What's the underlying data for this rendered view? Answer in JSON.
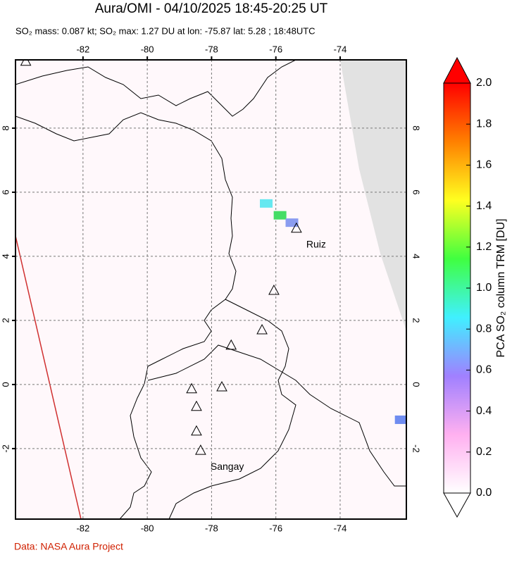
{
  "header": {
    "title": "Aura/OMI - 04/10/2025 18:45-20:25 UT",
    "subtitle": "SO₂ mass: 0.087 kt; SO₂ max: 1.27 DU at lon: -75.87 lat: 5.28 ; 18:48UTC"
  },
  "map": {
    "lonlim": [
      -84.1,
      -71.94
    ],
    "latlim": [
      -4.2,
      10.13
    ],
    "lonticks": [
      -82,
      -80,
      -78,
      -76,
      -74
    ],
    "latticks": [
      8,
      6,
      4,
      2,
      0,
      -2
    ],
    "volcanoes": [
      {
        "lon": -75.36,
        "lat": 4.86,
        "label": "Ruiz"
      },
      {
        "lon": -76.06,
        "lat": 2.92
      },
      {
        "lon": -76.43,
        "lat": 1.69
      },
      {
        "lon": -77.39,
        "lat": 1.21
      },
      {
        "lon": -77.68,
        "lat": -0.09
      },
      {
        "lon": -78.62,
        "lat": -0.15
      },
      {
        "lon": -78.47,
        "lat": -0.7
      },
      {
        "lon": -78.47,
        "lat": -1.47
      },
      {
        "lon": -78.34,
        "lat": -2.07,
        "label": "Sangay"
      },
      {
        "lon": -83.78,
        "lat": 10.07
      }
    ],
    "plume": [
      {
        "lon": -76.3,
        "lat": 5.65,
        "value": 1.0,
        "color": "#66e8f0"
      },
      {
        "lon": -75.87,
        "lat": 5.28,
        "value": 1.27,
        "color": "#44dd66"
      },
      {
        "lon": -75.5,
        "lat": 5.05,
        "value": 0.7,
        "color": "#8a9cf0"
      },
      {
        "lon": -72.1,
        "lat": -1.1,
        "value": 0.7,
        "color": "#6f8cf0"
      }
    ]
  },
  "colorbar": {
    "label": "PCA SO₂ column TRM [DU]",
    "lim": [
      0,
      2
    ],
    "colors": [
      "#ffffff",
      "#ffb0f0",
      "#a080ff",
      "#40f0ff",
      "#40ff40",
      "#ffff20",
      "#ff8000",
      "#ff0000"
    ],
    "ticks": [
      {
        "value": 0,
        "label": "0.0"
      },
      {
        "value": 0.2,
        "label": "0.2"
      },
      {
        "value": 0.4,
        "label": "0.4"
      },
      {
        "value": 0.6,
        "label": "0.6"
      },
      {
        "value": 0.8,
        "label": "0.8"
      },
      {
        "value": 1,
        "label": "1.0"
      },
      {
        "value": 1.2,
        "label": "1.2"
      },
      {
        "value": 1.4,
        "label": "1.4"
      },
      {
        "value": 1.6,
        "label": "1.6"
      },
      {
        "value": 1.8,
        "label": "1.8"
      },
      {
        "value": 2,
        "label": "2.0"
      }
    ]
  },
  "footer": {
    "credit": "Data: NASA Aura Project"
  }
}
